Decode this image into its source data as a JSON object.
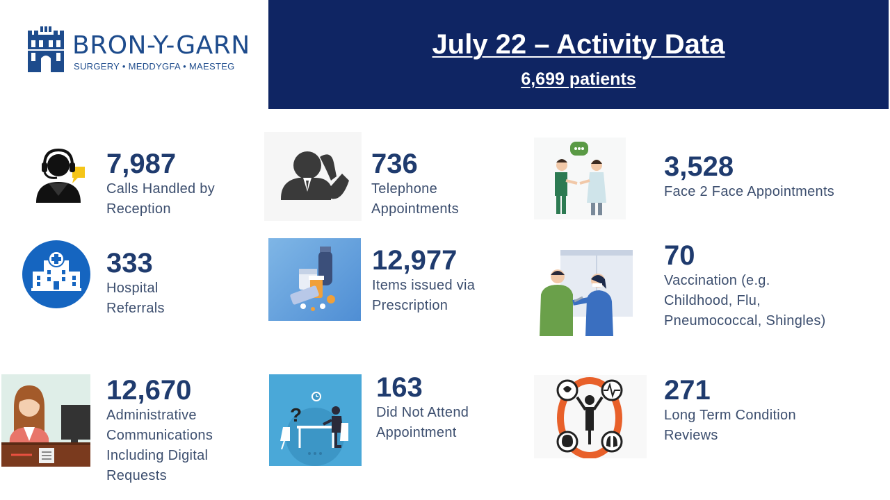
{
  "logo": {
    "name": "BRON-Y-GARN",
    "tagline": "SURGERY • MEDDYGFA • MAESTEG"
  },
  "header": {
    "title": "July 22 – Activity Data",
    "subtitle": "6,699 patients"
  },
  "stats": {
    "calls": {
      "value": "7,987",
      "label1": "Calls Handled by",
      "label2": "Reception",
      "icon": "call-center-icon"
    },
    "telephone": {
      "value": "736",
      "label1": "Telephone",
      "label2": "Appointments",
      "icon": "phone-call-icon"
    },
    "f2f": {
      "value": "3,528",
      "label1": "Face 2 Face Appointments",
      "icon": "consultation-icon"
    },
    "hospital": {
      "value": "333",
      "label1": "Hospital",
      "label2": "Referrals",
      "icon": "hospital-icon"
    },
    "prescription": {
      "value": "12,977",
      "label1": "Items issued via",
      "label2": "Prescription",
      "icon": "medication-icon"
    },
    "vaccination": {
      "value": "70",
      "label1": "Vaccination (e.g.",
      "label2": "Childhood, Flu,",
      "label3": "Pneumococcal, Shingles)",
      "icon": "vaccination-icon"
    },
    "admin": {
      "value": "12,670",
      "label1": "Administrative",
      "label2": "Communications",
      "label3": "Including Digital",
      "label4": "Requests",
      "icon": "receptionist-icon"
    },
    "dna": {
      "value": "163",
      "label1": "Did Not Attend",
      "label2": "Appointment",
      "icon": "missed-appointment-icon"
    },
    "ltc": {
      "value": "271",
      "label1": "Long Term Condition",
      "label2": "Reviews",
      "icon": "long-term-condition-icon"
    }
  },
  "colors": {
    "navy": "#0f2563",
    "value_text": "#1f3b6e",
    "label_text": "#3c4e6e",
    "brand_blue": "#1d4b8c"
  }
}
